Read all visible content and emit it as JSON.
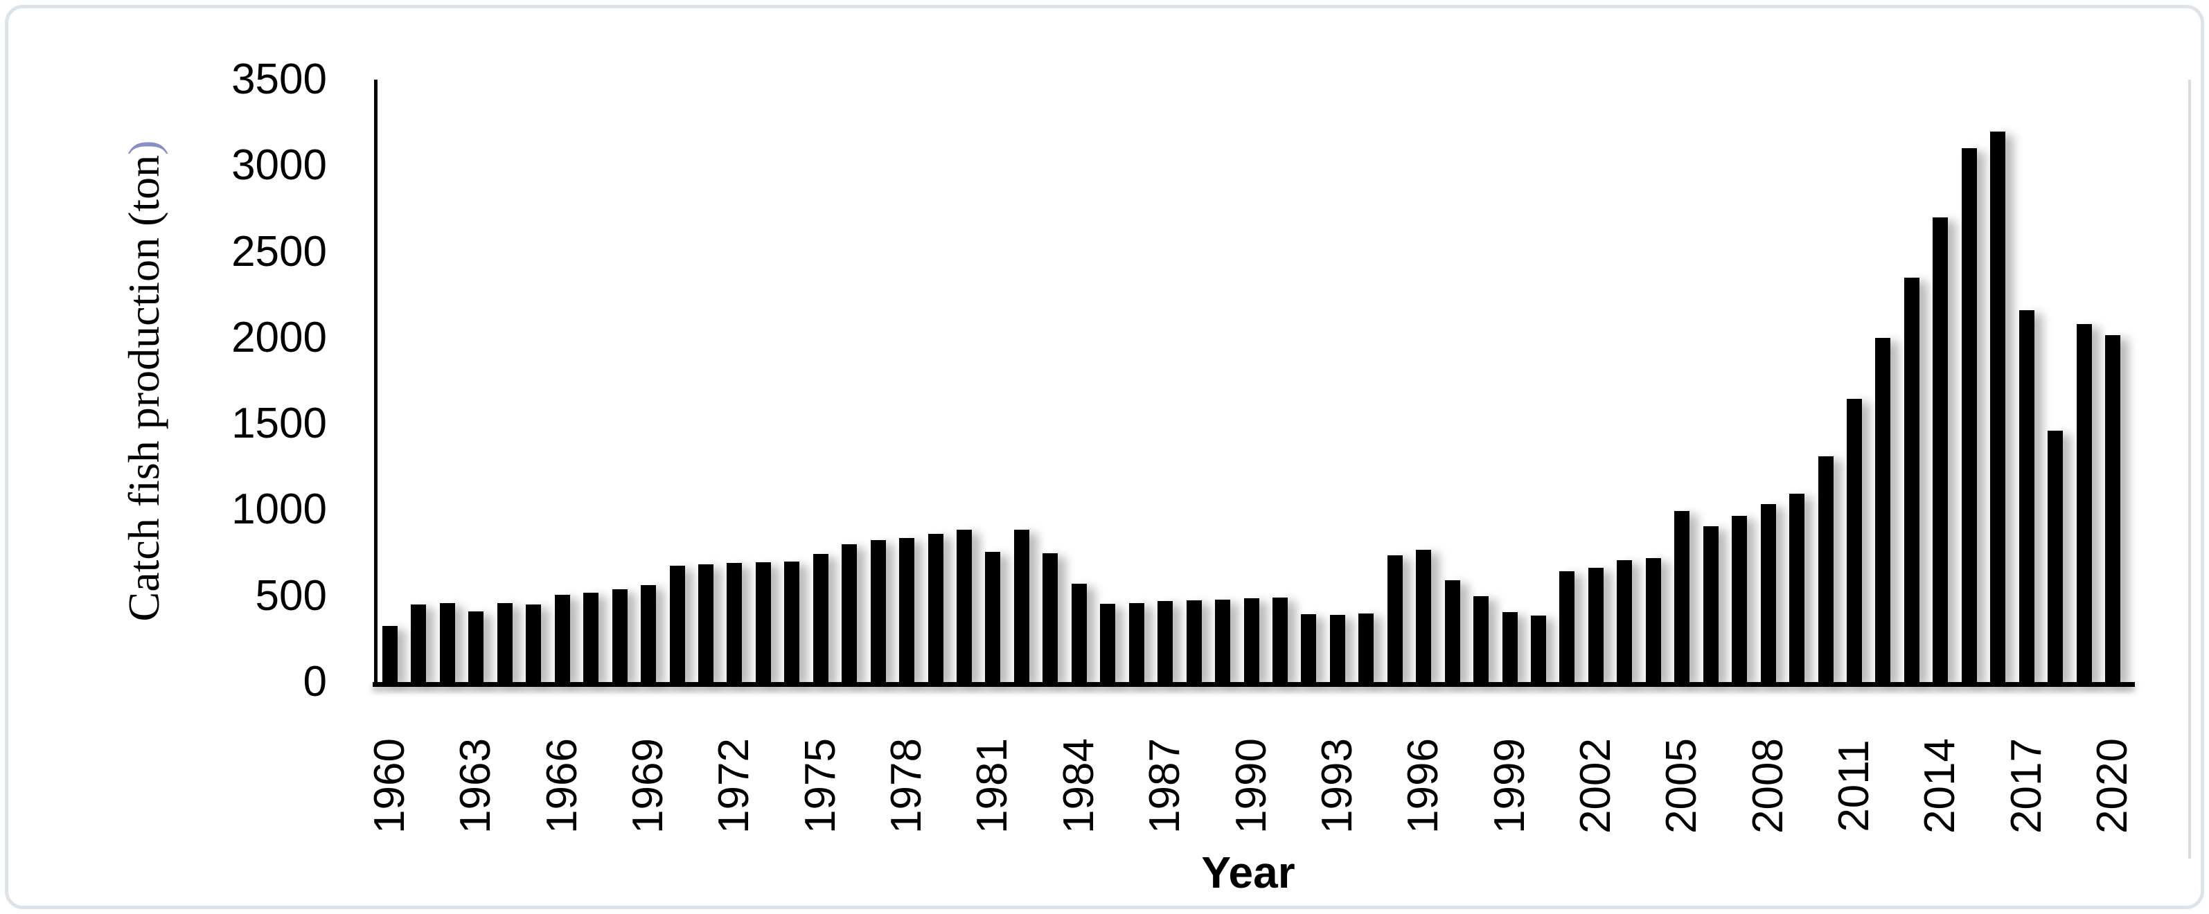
{
  "figure": {
    "background_color": "#ffffff",
    "border_color": "#dce3e9",
    "bar_color": "#000000",
    "axis_color": "#000000",
    "plot_right_border_color": "#d9dde1",
    "ylabel_paren_color": "#8a8ec6"
  },
  "chart_data": {
    "type": "bar",
    "title": "",
    "xlabel": "Year",
    "ylabel": "Catch fish production (ton)",
    "ylabel_main": "Catch fish production (ton",
    "ylabel_paren": ")",
    "ylim": [
      0,
      3500
    ],
    "ytick_step": 500,
    "yticks": [
      0,
      500,
      1000,
      1500,
      2000,
      2500,
      3000,
      3500
    ],
    "grid": false,
    "legend": "none",
    "bar_color": "#000000",
    "xtick_labels": [
      "1960",
      "1963",
      "1966",
      "1969",
      "1972",
      "1975",
      "1978",
      "1981",
      "1984",
      "1987",
      "1990",
      "1993",
      "1996",
      "1999",
      "2002",
      "2005",
      "2008",
      "2011",
      "2014",
      "2017",
      "2020"
    ],
    "categories": [
      1960,
      1961,
      1962,
      1963,
      1964,
      1965,
      1966,
      1967,
      1968,
      1969,
      1970,
      1971,
      1972,
      1973,
      1974,
      1975,
      1976,
      1977,
      1978,
      1979,
      1980,
      1981,
      1982,
      1983,
      1984,
      1985,
      1986,
      1987,
      1988,
      1989,
      1990,
      1991,
      1992,
      1993,
      1994,
      1995,
      1996,
      1997,
      1998,
      1999,
      2000,
      2001,
      2002,
      2003,
      2004,
      2005,
      2006,
      2007,
      2008,
      2009,
      2010,
      2011,
      2012,
      2013,
      2014,
      2015,
      2016,
      2017,
      2018,
      2019,
      2020
    ],
    "values": [
      325,
      450,
      460,
      410,
      460,
      450,
      505,
      520,
      540,
      565,
      675,
      685,
      690,
      695,
      700,
      745,
      800,
      825,
      835,
      860,
      885,
      755,
      885,
      750,
      570,
      455,
      460,
      470,
      475,
      480,
      485,
      490,
      395,
      390,
      400,
      735,
      770,
      590,
      500,
      405,
      385,
      645,
      665,
      710,
      720,
      995,
      905,
      965,
      1035,
      1095,
      1310,
      1645,
      2000,
      2350,
      2700,
      3100,
      3200,
      2160,
      1460,
      2080,
      2015
    ]
  }
}
